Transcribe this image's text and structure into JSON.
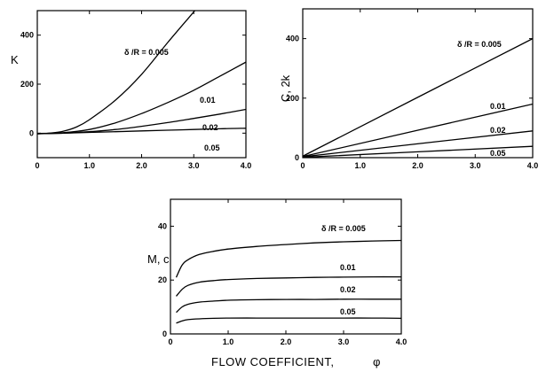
{
  "figure": {
    "xlabel_main": "FLOW   COEFFICIENT,",
    "xlabel_symbol": "φ"
  },
  "chart_data": [
    {
      "type": "line",
      "ylabel": "K",
      "xlim": [
        0,
        4.0
      ],
      "ylim": [
        -100,
        500
      ],
      "xticks": [
        "0",
        "1.0",
        "2.0",
        "3.0",
        "4.0"
      ],
      "yticks": [
        "0",
        "200",
        "400"
      ],
      "series": [
        {
          "name": "δ /R = 0.005",
          "x": [
            0,
            0.25,
            0.5,
            0.75,
            1.0,
            1.5,
            2.0,
            2.5,
            2.9,
            3.1
          ],
          "y": [
            -3,
            0,
            8,
            25,
            55,
            135,
            240,
            370,
            470,
            520
          ]
        },
        {
          "name": "0.01",
          "x": [
            0,
            0.5,
            1.0,
            1.5,
            2.0,
            2.5,
            3.0,
            3.5,
            4.0
          ],
          "y": [
            -2,
            2,
            15,
            42,
            80,
            125,
            175,
            232,
            290
          ]
        },
        {
          "name": "0.02",
          "x": [
            0,
            0.5,
            1.0,
            1.5,
            2.0,
            2.5,
            3.0,
            3.5,
            4.0
          ],
          "y": [
            -2,
            0,
            6,
            15,
            28,
            43,
            60,
            78,
            97
          ]
        },
        {
          "name": "0.05",
          "x": [
            0,
            0.5,
            1.0,
            1.5,
            2.0,
            2.5,
            3.0,
            3.5,
            4.0
          ],
          "y": [
            -1,
            0,
            3,
            6,
            9,
            12,
            15,
            18,
            20
          ]
        }
      ]
    },
    {
      "type": "line",
      "ylabel": "C, 2k",
      "xlim": [
        0,
        4.0
      ],
      "ylim": [
        0,
        500
      ],
      "xticks": [
        "0",
        "1.0",
        "2.0",
        "3.0",
        "4.0"
      ],
      "yticks": [
        "0",
        "200",
        "400"
      ],
      "series": [
        {
          "name": "δ /R = 0.005",
          "x": [
            0,
            0.1,
            4.0
          ],
          "y": [
            0,
            15,
            400
          ]
        },
        {
          "name": "0.01",
          "x": [
            0,
            0.1,
            4.0
          ],
          "y": [
            0,
            8,
            180
          ]
        },
        {
          "name": "0.02",
          "x": [
            0,
            0.1,
            4.0
          ],
          "y": [
            0,
            5,
            90
          ]
        },
        {
          "name": "0.05",
          "x": [
            0,
            0.1,
            4.0
          ],
          "y": [
            0,
            2,
            38
          ]
        }
      ]
    },
    {
      "type": "line",
      "ylabel": "M, c",
      "xlim": [
        0,
        4.0
      ],
      "ylim": [
        0,
        50
      ],
      "xticks": [
        "0",
        "1.0",
        "2.0",
        "3.0",
        "4.0"
      ],
      "yticks": [
        "0",
        "20",
        "40"
      ],
      "series": [
        {
          "name": "δ /R = 0.005",
          "x": [
            0.1,
            0.2,
            0.3,
            0.5,
            0.75,
            1.0,
            1.5,
            2.0,
            2.5,
            3.0,
            3.5,
            4.0
          ],
          "y": [
            21,
            25.5,
            27.5,
            29.5,
            30.7,
            31.5,
            32.5,
            33.2,
            33.8,
            34.2,
            34.5,
            34.7
          ]
        },
        {
          "name": "0.01",
          "x": [
            0.1,
            0.2,
            0.3,
            0.5,
            0.75,
            1.0,
            1.5,
            2.0,
            2.5,
            3.0,
            3.5,
            4.0
          ],
          "y": [
            14,
            16.5,
            18,
            19.2,
            19.8,
            20.2,
            20.6,
            20.8,
            21,
            21.1,
            21.2,
            21.2
          ]
        },
        {
          "name": "0.02",
          "x": [
            0.1,
            0.2,
            0.3,
            0.5,
            0.75,
            1.0,
            1.5,
            2.0,
            2.5,
            3.0,
            3.5,
            4.0
          ],
          "y": [
            8,
            10,
            11,
            11.8,
            12.2,
            12.5,
            12.7,
            12.8,
            12.8,
            12.9,
            12.9,
            12.9
          ]
        },
        {
          "name": "0.05",
          "x": [
            0.1,
            0.2,
            0.3,
            0.5,
            0.75,
            1.0,
            1.5,
            2.0,
            2.5,
            3.0,
            3.5,
            4.0
          ],
          "y": [
            4,
            4.8,
            5.3,
            5.6,
            5.8,
            5.9,
            5.9,
            5.9,
            5.9,
            5.9,
            5.9,
            5.8
          ]
        }
      ]
    }
  ]
}
